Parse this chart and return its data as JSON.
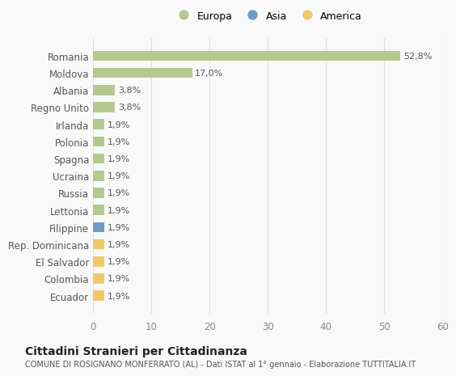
{
  "categories": [
    "Romania",
    "Moldova",
    "Albania",
    "Regno Unito",
    "Irlanda",
    "Polonia",
    "Spagna",
    "Ucraina",
    "Russia",
    "Lettonia",
    "Filippine",
    "Rep. Dominicana",
    "El Salvador",
    "Colombia",
    "Ecuador"
  ],
  "values": [
    52.8,
    17.0,
    3.8,
    3.8,
    1.9,
    1.9,
    1.9,
    1.9,
    1.9,
    1.9,
    1.9,
    1.9,
    1.9,
    1.9,
    1.9
  ],
  "labels": [
    "52,8%",
    "17,0%",
    "3,8%",
    "3,8%",
    "1,9%",
    "1,9%",
    "1,9%",
    "1,9%",
    "1,9%",
    "1,9%",
    "1,9%",
    "1,9%",
    "1,9%",
    "1,9%",
    "1,9%"
  ],
  "colors": [
    "#b5c98e",
    "#b5c98e",
    "#b5c98e",
    "#b5c98e",
    "#b5c98e",
    "#b5c98e",
    "#b5c98e",
    "#b5c98e",
    "#b5c98e",
    "#b5c98e",
    "#6b9dc2",
    "#f0c96b",
    "#f0c96b",
    "#f0c96b",
    "#f0c96b"
  ],
  "legend_labels": [
    "Europa",
    "Asia",
    "America"
  ],
  "legend_colors": [
    "#b5c98e",
    "#6b9dc2",
    "#f0c96b"
  ],
  "xlim": [
    0,
    60
  ],
  "xticks": [
    0,
    10,
    20,
    30,
    40,
    50,
    60
  ],
  "title": "Cittadini Stranieri per Cittadinanza",
  "subtitle": "COMUNE DI ROSIGNANO MONFERRATO (AL) - Dati ISTAT al 1° gennaio - Elaborazione TUTTITALIA.IT",
  "bg_color": "#f9f9f9",
  "grid_color": "#e0e0e0"
}
